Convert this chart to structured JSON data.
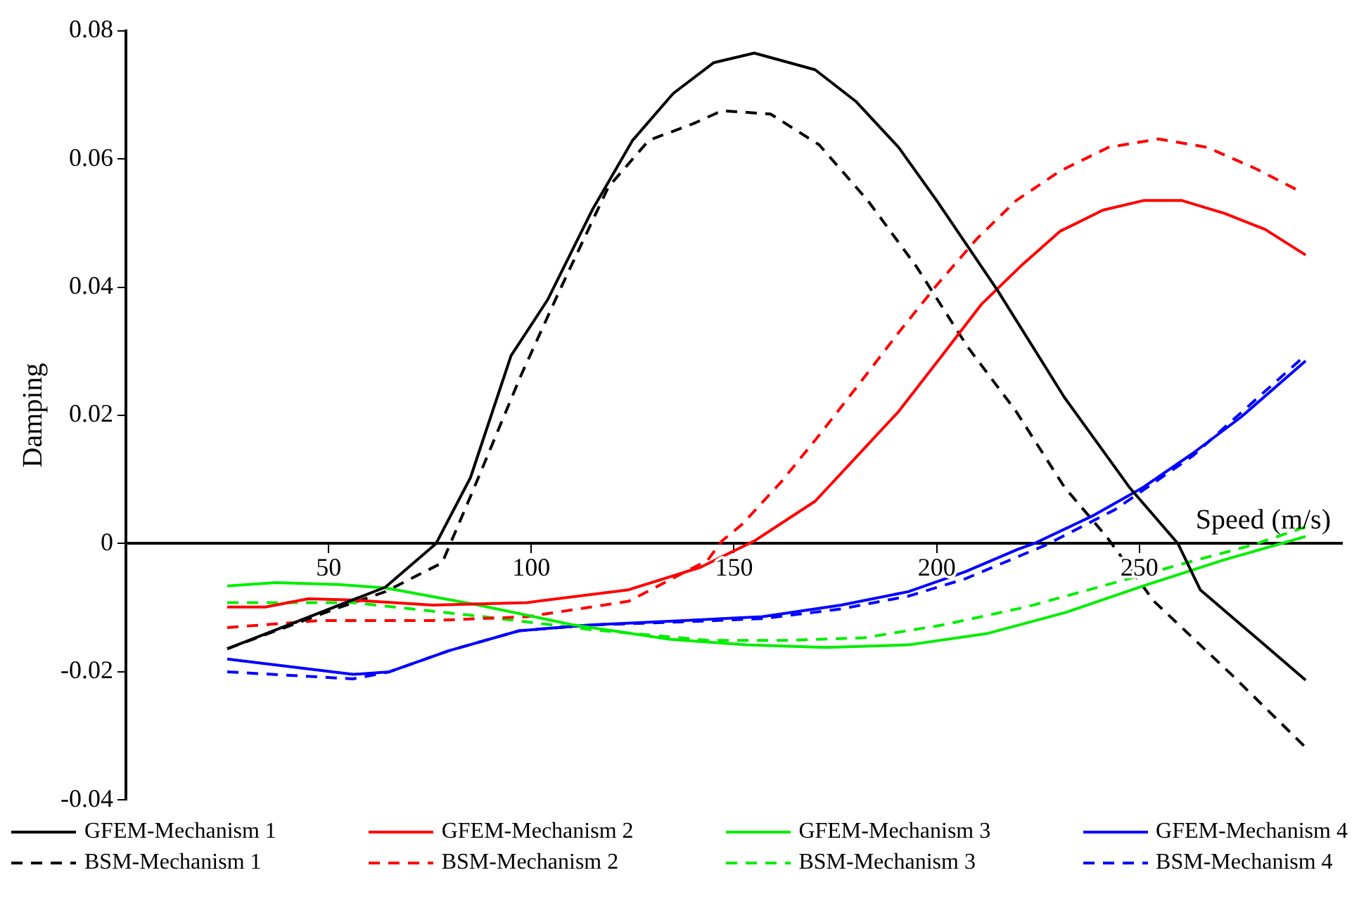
{
  "chart_data": {
    "type": "line",
    "xlabel": "Speed (m/s)",
    "ylabel": "Damping",
    "xlim": [
      0,
      300
    ],
    "ylim": [
      -0.04,
      0.08
    ],
    "xticks": [
      50,
      100,
      150,
      200,
      250
    ],
    "yticks": [
      -0.04,
      -0.02,
      0,
      0.02,
      0.04,
      0.06,
      0.08
    ],
    "grid": false,
    "legend": "bottom",
    "marker": "none",
    "series": [
      {
        "name": "GFEM-Mechanism 1",
        "color": "#000000",
        "line_style": "solid",
        "x": [
          25,
          64,
          76.5,
          85,
          95,
          104,
          115,
          125,
          135,
          145,
          155,
          170,
          180,
          190.6,
          200,
          215,
          231.5,
          247.5,
          259.5,
          265,
          291
        ],
        "values": [
          -0.0164,
          -0.0068,
          0,
          0.0103,
          0.0293,
          0.038,
          0.052,
          0.0629,
          0.0702,
          0.075,
          0.0765,
          0.0739,
          0.069,
          0.0618,
          0.0535,
          0.0395,
          0.0228,
          0.0088,
          0,
          -0.0072,
          -0.0213
        ]
      },
      {
        "name": "GFEM-Mechanism 2",
        "color": "#ff0000",
        "line_style": "solid",
        "x": [
          25,
          34.4,
          45,
          56,
          75.7,
          99,
          124,
          141.7,
          155,
          170,
          179.7,
          190.6,
          201.4,
          211,
          220.6,
          230.4,
          241,
          251,
          260.5,
          271,
          281,
          291
        ],
        "values": [
          -0.0099,
          -0.0099,
          -0.0086,
          -0.0088,
          -0.0096,
          -0.0092,
          -0.0072,
          -0.0037,
          0.0004,
          0.0066,
          0.0132,
          0.0206,
          0.0294,
          0.0373,
          0.0432,
          0.0487,
          0.052,
          0.0535,
          0.0535,
          0.0515,
          0.049,
          0.045
        ]
      },
      {
        "name": "GFEM-Mechanism 3",
        "color": "#00ee00",
        "line_style": "solid",
        "x": [
          25,
          37,
          52.5,
          64,
          87,
          110.5,
          134,
          153,
          172.5,
          193,
          212.7,
          232,
          251,
          270.6,
          291
        ],
        "values": [
          -0.0066,
          -0.0061,
          -0.0064,
          -0.0069,
          -0.0096,
          -0.0127,
          -0.0149,
          -0.0158,
          -0.0162,
          -0.0158,
          -0.014,
          -0.0107,
          -0.0066,
          -0.0026,
          0.0011
        ]
      },
      {
        "name": "GFEM-Mechanism 4",
        "color": "#0000ff",
        "line_style": "solid",
        "x": [
          25,
          56,
          65,
          79.7,
          97,
          114.5,
          137.7,
          157,
          176.4,
          193,
          207,
          220,
          224,
          238.7,
          251,
          263,
          275,
          291
        ],
        "values": [
          -0.018,
          -0.0204,
          -0.02,
          -0.0167,
          -0.0136,
          -0.0127,
          -0.012,
          -0.0114,
          -0.0096,
          -0.0075,
          -0.0044,
          -0.0009,
          0,
          0.0044,
          0.0088,
          0.014,
          0.0197,
          0.0285
        ]
      },
      {
        "name": "BSM-Mechanism 1",
        "color": "#000000",
        "line_style": "dashed",
        "x": [
          25,
          52.5,
          64,
          78,
          85.5,
          97.5,
          107,
          119,
          129,
          140,
          147,
          159,
          171,
          183,
          195,
          207.6,
          219.6,
          231.5,
          242,
          253.6,
          273,
          291
        ],
        "values": [
          -0.0164,
          -0.01,
          -0.0075,
          -0.003,
          0.0081,
          0.0263,
          0.0395,
          0.0556,
          0.0629,
          0.0655,
          0.0675,
          0.067,
          0.0622,
          0.0535,
          0.0432,
          0.0307,
          0.0206,
          0.0088,
          0.001,
          -0.009,
          -0.0206,
          -0.0318
        ]
      },
      {
        "name": "BSM-Mechanism 2",
        "color": "#ff0000",
        "line_style": "dashed",
        "x": [
          25,
          48,
          75.7,
          99,
          124,
          143.5,
          147,
          152,
          161.6,
          171,
          181,
          190.6,
          200,
          210,
          219.6,
          230.4,
          242.4,
          254.7,
          266.7,
          278.6,
          290
        ],
        "values": [
          -0.0131,
          -0.012,
          -0.012,
          -0.0114,
          -0.009,
          -0.0026,
          0.0004,
          0.003,
          0.0096,
          0.0169,
          0.025,
          0.0329,
          0.0403,
          0.0476,
          0.0535,
          0.0581,
          0.0618,
          0.0631,
          0.0618,
          0.0585,
          0.0548
        ]
      },
      {
        "name": "BSM-Mechanism 3",
        "color": "#00ee00",
        "line_style": "dashed",
        "x": [
          25,
          56,
          85.5,
          114.5,
          143.5,
          162.7,
          182,
          201.4,
          222,
          241,
          261,
          278,
          291
        ],
        "values": [
          -0.0092,
          -0.0092,
          -0.0112,
          -0.0134,
          -0.0151,
          -0.0151,
          -0.0147,
          -0.0127,
          -0.0099,
          -0.0066,
          -0.0031,
          -0.0002,
          0.0026
        ]
      },
      {
        "name": "BSM-Mechanism 4",
        "color": "#0000ff",
        "line_style": "dashed",
        "x": [
          25,
          56,
          65,
          79.7,
          97,
          114.5,
          137.7,
          157,
          176.4,
          193,
          207,
          227,
          244,
          263,
          291
        ],
        "values": [
          -0.02,
          -0.0211,
          -0.02,
          -0.0167,
          -0.0136,
          -0.0127,
          -0.0122,
          -0.0117,
          -0.0102,
          -0.0082,
          -0.0055,
          -0.0002,
          0.0053,
          0.0136,
          0.0294
        ]
      }
    ]
  }
}
